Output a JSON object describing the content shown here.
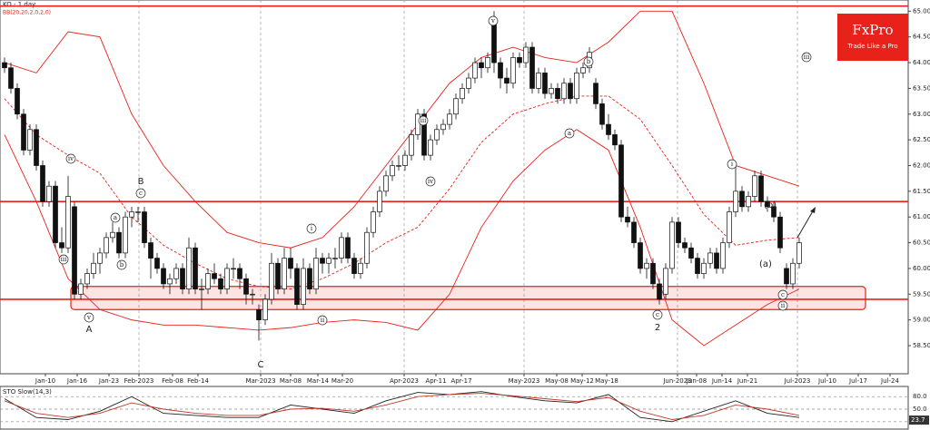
{
  "logo": {
    "brand": "FxPro",
    "tagline": "Trade Like a Pro"
  },
  "chart_data": [
    {
      "type": "candlestick",
      "title": "KO - 1 day",
      "subtitle": "BB(20,20,2,0,2,0)",
      "ylim": [
        58.2,
        65.2
      ],
      "yticks": [
        {
          "value": 58.5,
          "label": "58.50"
        },
        {
          "value": 59,
          "label": "59.00"
        },
        {
          "value": 59.5,
          "label": "59.50"
        },
        {
          "value": 60,
          "label": "60.00"
        },
        {
          "value": 60.5,
          "label": "60.50"
        },
        {
          "value": 61,
          "label": "61.00"
        },
        {
          "value": 61.5,
          "label": "61.50"
        },
        {
          "value": 62,
          "label": "62.00"
        },
        {
          "value": 62.5,
          "label": "62.50"
        },
        {
          "value": 63,
          "label": "63.00"
        },
        {
          "value": 63.5,
          "label": "63.50"
        },
        {
          "value": 64,
          "label": "64.00"
        },
        {
          "value": 64.5,
          "label": "64.50"
        },
        {
          "value": 65,
          "label": "65.00"
        }
      ],
      "date_labels": [
        "Jan-10",
        "Jan-16",
        "Jan-23",
        "Feb-2023",
        "Feb-08",
        "Feb-14",
        "Mar-2023",
        "Mar-08",
        "Mar-14",
        "Mar-20",
        "Apr-2023",
        "Apr-11",
        "Apr-17",
        "May-2023",
        "May-08",
        "May-12",
        "May-18",
        "Jun-2023",
        "Jun-08",
        "Jun-14",
        "Jun-21",
        "Jul-2023",
        "Jul-10",
        "Jul-17",
        "Jul-24"
      ],
      "candles": [
        [
          64.0,
          64.1,
          63.8,
          63.9
        ],
        [
          63.9,
          64.0,
          63.4,
          63.5
        ],
        [
          63.5,
          63.6,
          62.9,
          63.0
        ],
        [
          63.0,
          63.1,
          62.2,
          62.3
        ],
        [
          62.3,
          62.8,
          62.2,
          62.7
        ],
        [
          62.7,
          62.8,
          61.9,
          62.0
        ],
        [
          62.0,
          62.1,
          61.2,
          61.3
        ],
        [
          61.3,
          61.7,
          61.2,
          61.6
        ],
        [
          61.6,
          61.7,
          60.4,
          60.5
        ],
        [
          60.5,
          60.8,
          60.3,
          60.4
        ],
        [
          60.4,
          61.8,
          60.3,
          61.4
        ],
        [
          61.2,
          61.3,
          59.4,
          59.5
        ],
        [
          59.5,
          59.8,
          59.4,
          59.7
        ],
        [
          59.7,
          60.0,
          59.6,
          59.9
        ],
        [
          59.9,
          60.3,
          59.8,
          60.1
        ],
        [
          60.1,
          60.4,
          59.9,
          60.3
        ],
        [
          60.3,
          60.7,
          60.2,
          60.6
        ],
        [
          60.6,
          60.9,
          60.5,
          60.7
        ],
        [
          60.7,
          60.8,
          60.2,
          60.3
        ],
        [
          60.3,
          61.1,
          60.2,
          61.0
        ],
        [
          61.0,
          61.2,
          60.8,
          61.1
        ],
        [
          61.1,
          61.2,
          60.9,
          61.1
        ],
        [
          61.1,
          61.2,
          60.4,
          60.5
        ],
        [
          60.5,
          60.6,
          59.8,
          60.2
        ],
        [
          60.2,
          60.3,
          59.9,
          60.0
        ],
        [
          60.0,
          60.1,
          59.6,
          59.7
        ],
        [
          59.7,
          59.9,
          59.5,
          59.8
        ],
        [
          59.8,
          60.1,
          59.7,
          60.0
        ],
        [
          60.0,
          60.1,
          59.5,
          59.6
        ],
        [
          59.6,
          60.6,
          59.5,
          60.4
        ],
        [
          60.4,
          60.5,
          59.5,
          59.6
        ],
        [
          59.6,
          59.8,
          59.2,
          59.6
        ],
        [
          59.6,
          60.0,
          59.5,
          59.9
        ],
        [
          59.9,
          60.1,
          59.7,
          59.8
        ],
        [
          59.8,
          59.9,
          59.5,
          59.6
        ],
        [
          59.6,
          60.1,
          59.5,
          60.0
        ],
        [
          60.0,
          60.2,
          59.8,
          60.0
        ],
        [
          60.0,
          60.1,
          59.6,
          59.8
        ],
        [
          59.8,
          59.9,
          59.3,
          59.5
        ],
        [
          59.5,
          59.6,
          59.3,
          59.5
        ],
        [
          59.2,
          59.3,
          58.6,
          59.0
        ],
        [
          59.0,
          59.5,
          58.9,
          59.4
        ],
        [
          59.4,
          60.3,
          59.3,
          60.1
        ],
        [
          60.1,
          60.2,
          59.5,
          59.6
        ],
        [
          59.6,
          60.4,
          59.5,
          60.2
        ],
        [
          60.2,
          60.4,
          59.8,
          60.0
        ],
        [
          60.0,
          60.1,
          59.2,
          59.3
        ],
        [
          59.3,
          60.2,
          59.2,
          60.0
        ],
        [
          60.0,
          60.1,
          59.5,
          59.6
        ],
        [
          59.6,
          60.4,
          59.5,
          60.2
        ],
        [
          60.2,
          60.3,
          59.9,
          60.1
        ],
        [
          60.1,
          60.3,
          59.9,
          60.2
        ],
        [
          60.2,
          60.4,
          60.0,
          60.2
        ],
        [
          60.2,
          60.7,
          60.1,
          60.6
        ],
        [
          60.6,
          60.7,
          60.1,
          60.2
        ],
        [
          60.2,
          60.3,
          59.8,
          59.9
        ],
        [
          59.9,
          60.2,
          59.8,
          60.1
        ],
        [
          60.1,
          60.8,
          60.0,
          60.7
        ],
        [
          60.7,
          61.2,
          60.6,
          61.1
        ],
        [
          61.1,
          61.6,
          61.0,
          61.5
        ],
        [
          61.5,
          61.9,
          61.4,
          61.8
        ],
        [
          61.8,
          62.1,
          61.7,
          62.0
        ],
        [
          62.0,
          62.2,
          61.9,
          62.0
        ],
        [
          62.0,
          62.3,
          61.9,
          62.2
        ],
        [
          62.2,
          62.7,
          62.1,
          62.6
        ],
        [
          62.6,
          63.1,
          62.5,
          63.0
        ],
        [
          63.0,
          63.1,
          62.1,
          62.2
        ],
        [
          62.2,
          62.6,
          62.1,
          62.5
        ],
        [
          62.5,
          62.8,
          62.4,
          62.7
        ],
        [
          62.7,
          62.9,
          62.6,
          62.8
        ],
        [
          62.8,
          63.1,
          62.7,
          63.0
        ],
        [
          63.0,
          63.4,
          62.9,
          63.3
        ],
        [
          63.3,
          63.6,
          63.2,
          63.5
        ],
        [
          63.5,
          63.8,
          63.4,
          63.7
        ],
        [
          63.7,
          64.1,
          63.6,
          64.0
        ],
        [
          64.0,
          64.1,
          63.7,
          63.9
        ],
        [
          63.9,
          64.2,
          63.8,
          64.1
        ],
        [
          64.8,
          65.0,
          63.8,
          64.0
        ],
        [
          64.0,
          64.1,
          63.5,
          63.7
        ],
        [
          63.7,
          63.9,
          63.4,
          63.6
        ],
        [
          63.6,
          64.2,
          63.5,
          64.1
        ],
        [
          64.1,
          64.2,
          63.9,
          64.0
        ],
        [
          64.0,
          64.4,
          63.9,
          64.3
        ],
        [
          64.3,
          64.4,
          63.4,
          63.5
        ],
        [
          63.5,
          63.9,
          63.4,
          63.8
        ],
        [
          63.8,
          63.9,
          63.3,
          63.4
        ],
        [
          63.4,
          63.6,
          63.3,
          63.5
        ],
        [
          63.5,
          63.6,
          63.2,
          63.3
        ],
        [
          63.3,
          63.7,
          63.2,
          63.6
        ],
        [
          63.6,
          63.7,
          63.2,
          63.3
        ],
        [
          63.3,
          63.9,
          63.2,
          63.8
        ],
        [
          63.8,
          64.0,
          63.7,
          63.9
        ],
        [
          63.9,
          64.3,
          63.8,
          64.2
        ],
        [
          63.6,
          63.7,
          63.1,
          63.2
        ],
        [
          63.2,
          63.3,
          62.7,
          62.8
        ],
        [
          62.8,
          63.0,
          62.5,
          62.6
        ],
        [
          62.6,
          62.7,
          62.3,
          62.4
        ],
        [
          62.4,
          62.5,
          60.9,
          61.0
        ],
        [
          61.0,
          61.2,
          60.8,
          60.9
        ],
        [
          60.9,
          61.0,
          60.4,
          60.5
        ],
        [
          60.5,
          60.6,
          59.9,
          60.0
        ],
        [
          60.0,
          60.2,
          59.8,
          60.1
        ],
        [
          60.1,
          60.2,
          59.6,
          59.7
        ],
        [
          59.7,
          59.8,
          59.3,
          59.4
        ],
        [
          59.5,
          60.1,
          59.4,
          60.0
        ],
        [
          60.0,
          61.0,
          59.9,
          60.9
        ],
        [
          60.9,
          61.0,
          60.4,
          60.5
        ],
        [
          60.5,
          60.6,
          60.3,
          60.4
        ],
        [
          60.4,
          60.5,
          60.1,
          60.2
        ],
        [
          60.2,
          60.3,
          59.8,
          59.9
        ],
        [
          59.9,
          60.2,
          59.8,
          60.1
        ],
        [
          60.1,
          60.4,
          60.0,
          60.3
        ],
        [
          60.3,
          60.4,
          59.9,
          60.0
        ],
        [
          60.0,
          60.6,
          59.9,
          60.5
        ],
        [
          60.5,
          61.2,
          60.4,
          61.1
        ],
        [
          61.1,
          62.0,
          61.0,
          61.5
        ],
        [
          61.5,
          61.6,
          61.1,
          61.2
        ],
        [
          61.2,
          61.5,
          61.1,
          61.4
        ],
        [
          61.4,
          61.9,
          61.3,
          61.8
        ],
        [
          61.8,
          61.9,
          61.2,
          61.3
        ],
        [
          61.3,
          61.4,
          61.1,
          61.2
        ],
        [
          61.2,
          61.3,
          60.9,
          61.0
        ],
        [
          61.0,
          61.1,
          60.3,
          60.4
        ],
        [
          60.0,
          60.1,
          59.6,
          59.7
        ],
        [
          59.7,
          60.2,
          59.6,
          60.1
        ],
        [
          60.1,
          60.6,
          60.0,
          60.5
        ]
      ],
      "bands": {
        "x": [
          0,
          5,
          10,
          15,
          20,
          25,
          30,
          35,
          40,
          45,
          50,
          55,
          60,
          65,
          70,
          75,
          80,
          85,
          90,
          95,
          100,
          105,
          110,
          115,
          120,
          125
        ],
        "color": "#e8211a",
        "upper": [
          64.0,
          63.8,
          64.6,
          64.5,
          63.0,
          62.0,
          61.3,
          60.7,
          60.5,
          60.4,
          60.6,
          61.2,
          62.0,
          62.8,
          63.6,
          64.1,
          64.3,
          64.1,
          64.0,
          64.4,
          65.0,
          65.0,
          63.6,
          62.0,
          61.8,
          61.6
        ],
        "middle": [
          63.3,
          62.6,
          62.2,
          61.85,
          61.0,
          60.45,
          60.1,
          59.8,
          59.65,
          59.6,
          59.8,
          60.1,
          60.5,
          60.8,
          61.55,
          62.45,
          63.0,
          63.2,
          63.35,
          63.35,
          62.9,
          62.0,
          61.05,
          60.45,
          60.55,
          60.6
        ],
        "lower": [
          62.6,
          61.3,
          59.8,
          59.2,
          59.0,
          58.9,
          58.9,
          58.85,
          58.8,
          58.85,
          58.95,
          59.0,
          58.95,
          58.8,
          59.5,
          60.8,
          61.7,
          62.3,
          62.7,
          62.3,
          60.8,
          59.0,
          58.5,
          58.9,
          59.3,
          59.6
        ]
      },
      "levels": [
        65.1,
        61.3,
        59.4
      ],
      "zone": [
        59.2,
        59.65
      ],
      "annotations": [
        "iv",
        "iii",
        "v",
        "A",
        "a",
        "b",
        "B",
        "c",
        "C",
        "i",
        "ii",
        "iii",
        "iv",
        "v",
        "a",
        "b",
        "c",
        "2",
        "i",
        "(b)",
        "(a)",
        "c",
        "ii",
        "iii"
      ]
    },
    {
      "type": "line",
      "title": "STO Slow(14,3)",
      "ylim": [
        0,
        100
      ],
      "yticks": [
        {
          "value": 20,
          "label": "20.0"
        },
        {
          "value": 50,
          "label": "50.0"
        },
        {
          "value": 80,
          "label": "80.0"
        }
      ],
      "last_value": 23.7,
      "x": [
        0,
        5,
        10,
        15,
        20,
        25,
        30,
        35,
        40,
        45,
        50,
        55,
        60,
        65,
        70,
        75,
        80,
        85,
        90,
        95,
        100,
        105,
        110,
        115,
        120,
        125
      ],
      "series": [
        {
          "color": "#222222",
          "values": [
            75,
            30,
            25,
            45,
            80,
            40,
            35,
            30,
            30,
            60,
            50,
            40,
            70,
            90,
            85,
            92,
            80,
            70,
            65,
            85,
            30,
            20,
            45,
            70,
            40,
            30
          ]
        },
        {
          "color": "#c0392b",
          "values": [
            70,
            40,
            30,
            40,
            65,
            50,
            40,
            35,
            35,
            50,
            52,
            45,
            60,
            80,
            85,
            88,
            82,
            75,
            68,
            78,
            45,
            25,
            35,
            60,
            50,
            35
          ]
        }
      ]
    }
  ]
}
